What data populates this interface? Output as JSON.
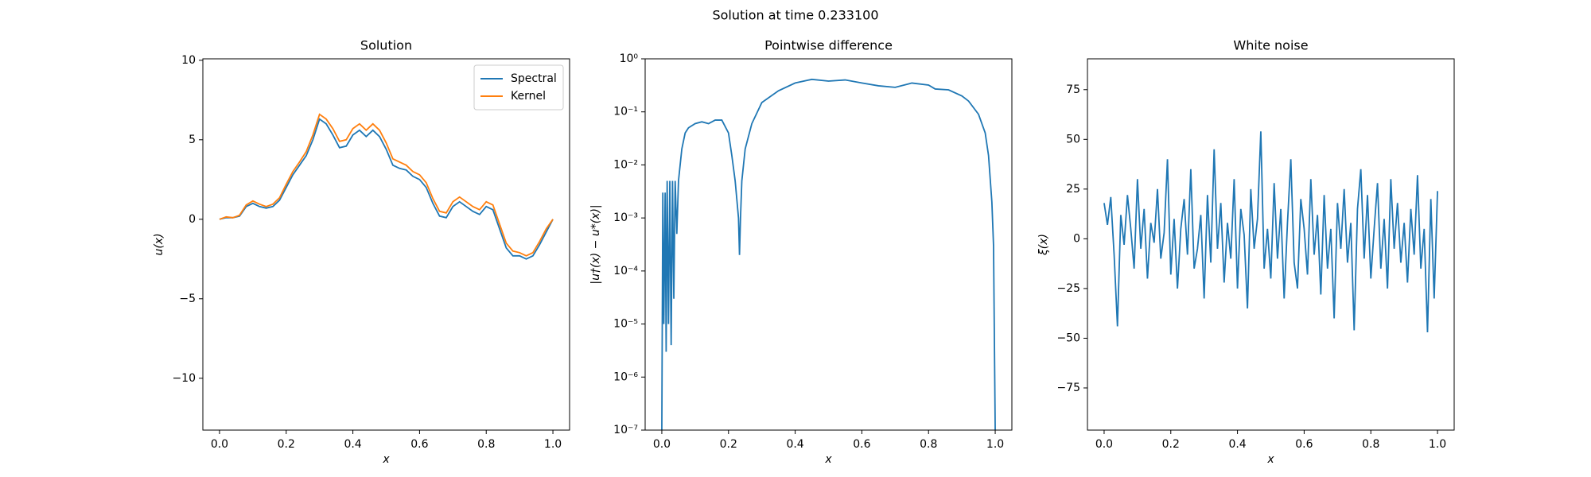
{
  "title": "Solution at time 0.233100",
  "chart_data": [
    {
      "type": "line",
      "title": "Solution",
      "x_label": "x",
      "y_label": "u(x)",
      "legend": "upper right",
      "xlim": [
        -0.05,
        1.05
      ],
      "ylim": [
        -13.26,
        10.09
      ],
      "xticks": [
        {
          "value": 0,
          "label": "0.0"
        },
        0.2,
        0.4,
        0.6,
        0.8,
        {
          "value": 1,
          "label": "1.0"
        }
      ],
      "yticks": [
        {
          "value": -10,
          "label": "−10"
        },
        {
          "value": -5,
          "label": "−5"
        },
        0,
        5,
        10
      ],
      "x": [
        0,
        0.02,
        0.04,
        0.06,
        0.08,
        0.1,
        0.12,
        0.14,
        0.16,
        0.18,
        0.2,
        0.22,
        0.24,
        0.26,
        0.28,
        0.3,
        0.32,
        0.34,
        0.36,
        0.38,
        0.4,
        0.42,
        0.44,
        0.46,
        0.48,
        0.5,
        0.52,
        0.54,
        0.56,
        0.58,
        0.6,
        0.62,
        0.64,
        0.66,
        0.68,
        0.7,
        0.72,
        0.74,
        0.76,
        0.78,
        0.8,
        0.82,
        0.84,
        0.86,
        0.88,
        0.9,
        0.92,
        0.94,
        0.96,
        0.98,
        1
      ],
      "series": [
        {
          "name": "Spectral",
          "color": "#1f77b4",
          "values": [
            0,
            0.1,
            0.1,
            0.2,
            0.8,
            1.0,
            0.8,
            0.7,
            0.8,
            1.2,
            2.0,
            2.8,
            3.4,
            4.0,
            5.0,
            6.3,
            6.0,
            5.3,
            4.5,
            4.6,
            5.3,
            5.6,
            5.2,
            5.6,
            5.2,
            4.4,
            3.4,
            3.2,
            3.1,
            2.7,
            2.5,
            2.0,
            1.0,
            0.2,
            0.1,
            0.8,
            1.1,
            0.8,
            0.5,
            0.3,
            0.8,
            0.6,
            -0.6,
            -1.8,
            -2.3,
            -2.3,
            -2.5,
            -2.3,
            -1.6,
            -0.8,
            0
          ]
        },
        {
          "name": "Kernel",
          "color": "#ff7f0e",
          "values": [
            0.0,
            0.15,
            0.1,
            0.25,
            0.9,
            1.15,
            0.95,
            0.8,
            0.95,
            1.35,
            2.2,
            3.0,
            3.6,
            4.25,
            5.3,
            6.6,
            6.3,
            5.7,
            4.9,
            5.0,
            5.7,
            6.0,
            5.6,
            6.0,
            5.6,
            4.8,
            3.8,
            3.6,
            3.4,
            3.0,
            2.8,
            2.3,
            1.3,
            0.5,
            0.4,
            1.1,
            1.4,
            1.1,
            0.8,
            0.6,
            1.1,
            0.9,
            -0.3,
            -1.5,
            -2.0,
            -2.1,
            -2.3,
            -2.1,
            -1.4,
            -0.6,
            0.0
          ]
        }
      ]
    },
    {
      "type": "line",
      "title": "Pointwise difference",
      "x_label": "x",
      "y_label": "|u†(x) − u*(x)|",
      "yscale": "log",
      "xlim": [
        -0.05,
        1.05
      ],
      "ylim": [
        1e-07,
        1
      ],
      "xticks": [
        {
          "value": 0,
          "label": "0.0"
        },
        0.2,
        0.4,
        0.6,
        0.8,
        {
          "value": 1,
          "label": "1.0"
        }
      ],
      "yticks": [
        {
          "value": 1e-07,
          "label": "10⁻⁷"
        },
        {
          "value": 1e-06,
          "label": "10⁻⁶"
        },
        {
          "value": 1e-05,
          "label": "10⁻⁵"
        },
        {
          "value": 0.0001,
          "label": "10⁻⁴"
        },
        {
          "value": 0.001,
          "label": "10⁻³"
        },
        {
          "value": 0.01,
          "label": "10⁻²"
        },
        {
          "value": 0.1,
          "label": "10⁻¹"
        },
        {
          "value": 1,
          "label": "10⁰"
        }
      ],
      "x": [
        0,
        0.003,
        0.006,
        0.01,
        0.013,
        0.016,
        0.02,
        0.024,
        0.028,
        0.032,
        0.036,
        0.04,
        0.045,
        0.05,
        0.055,
        0.06,
        0.07,
        0.08,
        0.1,
        0.12,
        0.14,
        0.16,
        0.18,
        0.2,
        0.21,
        0.22,
        0.23,
        0.233,
        0.236,
        0.24,
        0.25,
        0.27,
        0.3,
        0.35,
        0.4,
        0.45,
        0.5,
        0.55,
        0.6,
        0.65,
        0.7,
        0.75,
        0.8,
        0.82,
        0.86,
        0.9,
        0.92,
        0.95,
        0.97,
        0.98,
        0.99,
        0.995,
        1.0
      ],
      "series": [
        {
          "color": "#1f77b4",
          "values": [
            1e-07,
            0.003,
            1e-05,
            0.003,
            3e-06,
            0.005,
            1e-05,
            0.005,
            4e-06,
            0.005,
            3e-05,
            0.005,
            0.0005,
            0.005,
            0.01,
            0.02,
            0.04,
            0.05,
            0.06,
            0.065,
            0.06,
            0.07,
            0.07,
            0.04,
            0.015,
            0.005,
            0.001,
            0.0002,
            0.001,
            0.005,
            0.02,
            0.06,
            0.15,
            0.25,
            0.35,
            0.41,
            0.38,
            0.4,
            0.35,
            0.31,
            0.29,
            0.35,
            0.32,
            0.27,
            0.26,
            0.2,
            0.16,
            0.09,
            0.04,
            0.015,
            0.002,
            0.0003,
            1e-07
          ]
        }
      ]
    },
    {
      "type": "line",
      "title": "White noise",
      "x_label": "x",
      "y_label": "ξ(x)",
      "xlim": [
        -0.05,
        1.05
      ],
      "ylim": [
        -96.2,
        90.5
      ],
      "xticks": [
        {
          "value": 0,
          "label": "0.0"
        },
        0.2,
        0.4,
        0.6,
        0.8,
        {
          "value": 1,
          "label": "1.0"
        }
      ],
      "yticks": [
        {
          "value": -75,
          "label": "−75"
        },
        {
          "value": -50,
          "label": "−50"
        },
        {
          "value": -25,
          "label": "−25"
        },
        0,
        25,
        50,
        75
      ],
      "x": [
        0,
        0.01,
        0.02,
        0.03,
        0.04,
        0.05,
        0.06,
        0.07,
        0.08,
        0.09,
        0.1,
        0.11,
        0.12,
        0.13,
        0.14,
        0.15,
        0.16,
        0.17,
        0.18,
        0.19,
        0.2,
        0.21,
        0.22,
        0.23,
        0.24,
        0.25,
        0.26,
        0.27,
        0.28,
        0.29,
        0.3,
        0.31,
        0.32,
        0.33,
        0.34,
        0.35,
        0.36,
        0.37,
        0.38,
        0.39,
        0.4,
        0.41,
        0.42,
        0.43,
        0.44,
        0.45,
        0.46,
        0.47,
        0.48,
        0.49,
        0.5,
        0.51,
        0.52,
        0.53,
        0.54,
        0.55,
        0.56,
        0.57,
        0.58,
        0.59,
        0.6,
        0.61,
        0.62,
        0.63,
        0.64,
        0.65,
        0.66,
        0.67,
        0.68,
        0.69,
        0.7,
        0.71,
        0.72,
        0.73,
        0.74,
        0.75,
        0.76,
        0.77,
        0.78,
        0.79,
        0.8,
        0.81,
        0.82,
        0.83,
        0.84,
        0.85,
        0.86,
        0.87,
        0.88,
        0.89,
        0.9,
        0.91,
        0.92,
        0.93,
        0.94,
        0.95,
        0.96,
        0.97,
        0.98,
        0.99,
        1
      ],
      "series": [
        {
          "color": "#1f77b4",
          "values": [
            18,
            7,
            21,
            -8,
            -44,
            12,
            -3,
            22,
            5,
            -15,
            30,
            -5,
            15,
            -20,
            8,
            -2,
            25,
            -10,
            3,
            40,
            -18,
            10,
            -25,
            5,
            20,
            -8,
            35,
            -15,
            -5,
            12,
            -30,
            22,
            -12,
            45,
            -5,
            18,
            -22,
            8,
            -10,
            30,
            -25,
            15,
            2,
            -35,
            25,
            -5,
            10,
            54,
            -15,
            5,
            -20,
            28,
            -10,
            15,
            -30,
            8,
            40,
            -12,
            -25,
            20,
            5,
            -18,
            30,
            -8,
            12,
            -28,
            22,
            -15,
            5,
            -40,
            18,
            -5,
            25,
            -12,
            8,
            -46,
            15,
            35,
            -10,
            22,
            -20,
            5,
            28,
            -15,
            10,
            -25,
            30,
            -5,
            18,
            -12,
            8,
            -22,
            15,
            -8,
            32,
            -15,
            5,
            -47,
            20,
            -30,
            24
          ]
        }
      ]
    }
  ]
}
